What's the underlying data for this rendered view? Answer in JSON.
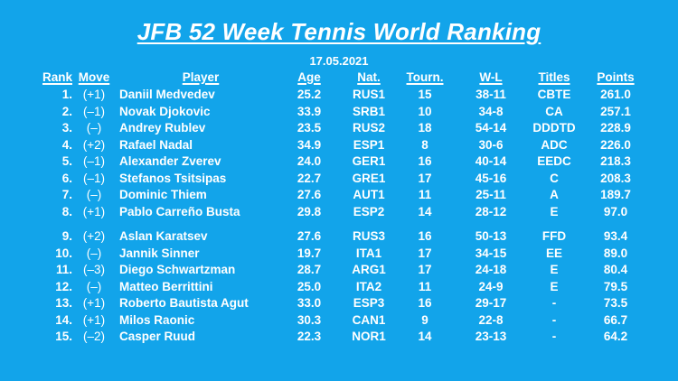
{
  "title": "JFB 52 Week Tennis World Ranking",
  "date": "17.05.2021",
  "headers": {
    "rank": "Rank",
    "move": "Move",
    "player": "Player",
    "age": "Age",
    "nat": "Nat.",
    "tourn": "Tourn.",
    "wl": "W-L",
    "titles": "Titles",
    "points": "Points"
  },
  "rows": [
    {
      "rank": "1.",
      "move": "(+1)",
      "player": "Daniil Medvedev",
      "age": "25.2",
      "nat": "RUS1",
      "tourn": "15",
      "wl": "38-11",
      "titles": "CBTE",
      "points": "261.0"
    },
    {
      "rank": "2.",
      "move": "(–1)",
      "player": "Novak Djokovic",
      "age": "33.9",
      "nat": "SRB1",
      "tourn": "10",
      "wl": "34-8",
      "titles": "CA",
      "points": "257.1"
    },
    {
      "rank": "3.",
      "move": "(–)",
      "player": "Andrey Rublev",
      "age": "23.5",
      "nat": "RUS2",
      "tourn": "18",
      "wl": "54-14",
      "titles": "DDDTD",
      "points": "228.9"
    },
    {
      "rank": "4.",
      "move": "(+2)",
      "player": "Rafael Nadal",
      "age": "34.9",
      "nat": "ESP1",
      "tourn": "8",
      "wl": "30-6",
      "titles": "ADC",
      "points": "226.0"
    },
    {
      "rank": "5.",
      "move": "(–1)",
      "player": "Alexander Zverev",
      "age": "24.0",
      "nat": "GER1",
      "tourn": "16",
      "wl": "40-14",
      "titles": "EEDC",
      "points": "218.3"
    },
    {
      "rank": "6.",
      "move": "(–1)",
      "player": "Stefanos Tsitsipas",
      "age": "22.7",
      "nat": "GRE1",
      "tourn": "17",
      "wl": "45-16",
      "titles": "C",
      "points": "208.3"
    },
    {
      "rank": "7.",
      "move": "(–)",
      "player": "Dominic Thiem",
      "age": "27.6",
      "nat": "AUT1",
      "tourn": "11",
      "wl": "25-11",
      "titles": "A",
      "points": "189.7"
    },
    {
      "rank": "8.",
      "move": "(+1)",
      "player": "Pablo Carreño Busta",
      "age": "29.8",
      "nat": "ESP2",
      "tourn": "14",
      "wl": "28-12",
      "titles": "E",
      "points": "97.0"
    },
    {
      "rank": "9.",
      "move": "(+2)",
      "player": "Aslan Karatsev",
      "age": "27.6",
      "nat": "RUS3",
      "tourn": "16",
      "wl": "50-13",
      "titles": "FFD",
      "points": "93.4"
    },
    {
      "rank": "10.",
      "move": "(–)",
      "player": "Jannik Sinner",
      "age": "19.7",
      "nat": "ITA1",
      "tourn": "17",
      "wl": "34-15",
      "titles": "EE",
      "points": "89.0"
    },
    {
      "rank": "11.",
      "move": "(–3)",
      "player": "Diego Schwartzman",
      "age": "28.7",
      "nat": "ARG1",
      "tourn": "17",
      "wl": "24-18",
      "titles": "E",
      "points": "80.4"
    },
    {
      "rank": "12.",
      "move": "(–)",
      "player": "Matteo Berrittini",
      "age": "25.0",
      "nat": "ITA2",
      "tourn": "11",
      "wl": "24-9",
      "titles": "E",
      "points": "79.5"
    },
    {
      "rank": "13.",
      "move": "(+1)",
      "player": "Roberto Bautista Agut",
      "age": "33.0",
      "nat": "ESP3",
      "tourn": "16",
      "wl": "29-17",
      "titles": "-",
      "points": "73.5"
    },
    {
      "rank": "14.",
      "move": "(+1)",
      "player": "Milos Raonic",
      "age": "30.3",
      "nat": "CAN1",
      "tourn": "9",
      "wl": "22-8",
      "titles": "-",
      "points": "66.7"
    },
    {
      "rank": "15.",
      "move": "(–2)",
      "player": "Casper Ruud",
      "age": "22.3",
      "nat": "NOR1",
      "tourn": "14",
      "wl": "23-13",
      "titles": "-",
      "points": "64.2"
    }
  ]
}
